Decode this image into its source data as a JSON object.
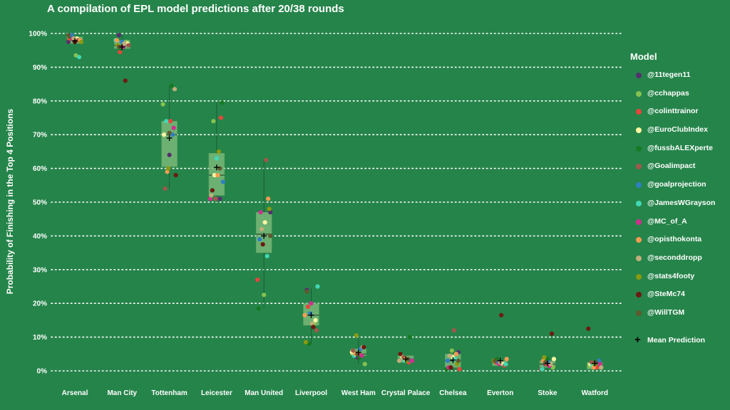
{
  "chart_data": {
    "type": "box",
    "title": "A compilation of EPL model predictions after 20/38 rounds",
    "xlabel": "",
    "ylabel": "Probability of Finishing in the Top 4 Positions",
    "ylim": [
      0,
      100
    ],
    "yticks": [
      "0%",
      "10%",
      "20%",
      "30%",
      "40%",
      "50%",
      "60%",
      "70%",
      "80%",
      "90%",
      "100%"
    ],
    "grid": "horizontal dotted",
    "legend": {
      "title": "Model",
      "placement": "right",
      "mean_label": "Mean Prediction"
    },
    "models": [
      {
        "name": "@11tegen11",
        "color": "#55306e"
      },
      {
        "name": "@cchappas",
        "color": "#86c24f"
      },
      {
        "name": "@colinttrainor",
        "color": "#e8453c"
      },
      {
        "name": "@EuroClubIndex",
        "color": "#fdf7a3"
      },
      {
        "name": "@fussbALEXperte",
        "color": "#157a22"
      },
      {
        "name": "@Goalimpact",
        "color": "#a0584a"
      },
      {
        "name": "@goalprojection",
        "color": "#2f7fc4"
      },
      {
        "name": "@JamesWGrayson",
        "color": "#42d7b5"
      },
      {
        "name": "@MC_of_A",
        "color": "#d02f8f"
      },
      {
        "name": "@opisthokonta",
        "color": "#f59d52"
      },
      {
        "name": "@seconddropp",
        "color": "#c0ae7a"
      },
      {
        "name": "@stats4footy",
        "color": "#8a9a10"
      },
      {
        "name": "@SteMc74",
        "color": "#6b1a10"
      },
      {
        "name": "@WillTGM",
        "color": "#5e5a2e"
      }
    ],
    "categories": [
      "Arsenal",
      "Man City",
      "Tottenham",
      "Leicester",
      "Man United",
      "Liverpool",
      "West Ham",
      "Crystal Palace",
      "Chelsea",
      "Everton",
      "Stoke",
      "Watford"
    ],
    "boxes": [
      {
        "q1": 97,
        "median": 98,
        "q3": 99,
        "wlo": 97,
        "whi": 99,
        "mean": 97.8
      },
      {
        "q1": 95.5,
        "median": 96.5,
        "q3": 98,
        "wlo": 95,
        "whi": 99.5,
        "mean": 96
      },
      {
        "q1": 60.5,
        "median": 70,
        "q3": 74,
        "wlo": 54,
        "whi": 84.5,
        "mean": 69
      },
      {
        "q1": 52,
        "median": 58,
        "q3": 64.5,
        "wlo": 50,
        "whi": 79.5,
        "mean": 60.3
      },
      {
        "q1": 35,
        "median": 40.5,
        "q3": 47,
        "wlo": 18.5,
        "whi": 62.5,
        "mean": 40
      },
      {
        "q1": 13.5,
        "median": 16.5,
        "q3": 20,
        "wlo": 8,
        "whi": 24.5,
        "mean": 16.5
      },
      {
        "q1": 4.5,
        "median": 5,
        "q3": 6.5,
        "wlo": 2,
        "whi": 10,
        "mean": 5.5
      },
      {
        "q1": 2.5,
        "median": 3.5,
        "q3": 4.5,
        "wlo": 2.5,
        "whi": 4.5,
        "mean": 3.5
      },
      {
        "q1": 1,
        "median": 3,
        "q3": 5,
        "wlo": 0,
        "whi": 6,
        "mean": 3.2
      },
      {
        "q1": 1.5,
        "median": 2.5,
        "q3": 3,
        "wlo": 1.5,
        "whi": 3,
        "mean": 3
      },
      {
        "q1": 1,
        "median": 2,
        "q3": 3,
        "wlo": 0,
        "whi": 3.5,
        "mean": 2.2
      },
      {
        "q1": 0.5,
        "median": 1.5,
        "q3": 2.5,
        "wlo": 0,
        "whi": 2.5,
        "mean": 2.2
      }
    ],
    "points": [
      [
        97.5,
        93.5,
        98.5,
        98.5,
        99,
        98,
        99.5,
        93,
        98.5,
        98,
        98.5,
        97.5,
        97.5,
        99.5
      ],
      [
        99.5,
        97.5,
        94.5,
        97,
        95.5,
        96.5,
        97.5,
        98,
        96,
        98,
        97,
        96.5,
        86,
        96
      ],
      [
        64,
        79,
        74,
        70,
        84.5,
        54,
        70,
        74,
        72,
        59,
        83.5,
        60,
        58,
        70.5
      ],
      [
        51,
        74,
        75,
        58,
        79.5,
        51,
        56,
        63,
        51,
        58,
        52,
        65,
        53.5,
        60
      ],
      [
        47,
        22.5,
        27,
        44,
        18.5,
        62.5,
        39,
        34,
        47,
        51,
        42,
        48,
        37.5,
        40
      ],
      [
        24,
        14,
        19,
        15,
        8,
        12,
        17,
        25,
        20,
        16.5,
        14,
        8.5,
        13,
        23.5
      ],
      [
        4,
        2,
        5,
        5.5,
        4,
        6,
        6.5,
        4.5,
        4.5,
        5,
        7,
        10.5,
        7,
        5
      ],
      [
        3,
        4.5,
        2.5,
        4,
        10,
        4,
        3,
        3,
        3,
        3.5,
        3,
        3,
        5,
        3.5
      ],
      [
        5.5,
        6,
        0.5,
        4,
        0.5,
        12,
        3,
        3.5,
        1,
        5,
        4.5,
        2,
        1,
        3
      ],
      [
        3,
        2,
        2.5,
        2,
        3.5,
        1.5,
        2.5,
        2,
        2,
        3.5,
        2.5,
        3,
        16.5,
        3
      ],
      [
        2,
        1,
        2,
        3.5,
        3.5,
        0.5,
        2.5,
        0.5,
        1.5,
        3,
        2,
        4,
        11,
        2.5
      ],
      [
        2.5,
        1.5,
        1,
        2,
        2.5,
        2.5,
        3,
        1.5,
        2,
        1,
        1,
        2,
        12.5,
        2.5
      ]
    ]
  }
}
